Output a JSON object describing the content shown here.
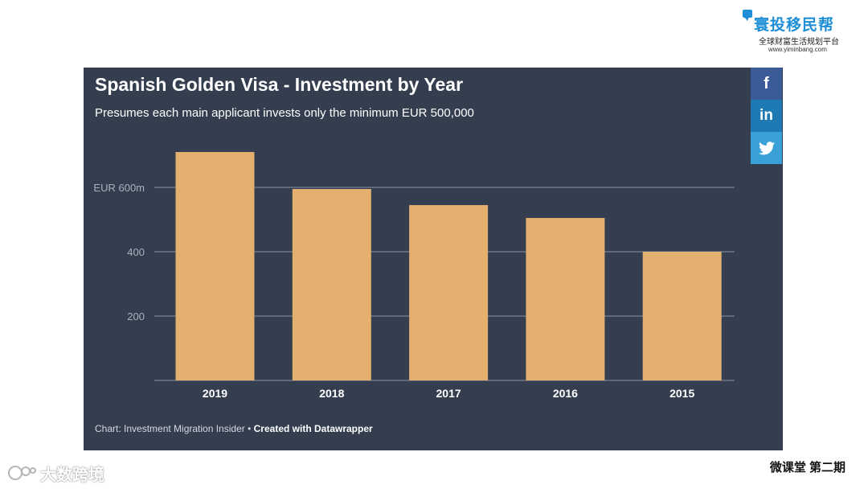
{
  "logo": {
    "brand": "寰投移民帮",
    "tagline": "全球财富生活规划平台",
    "url": "www.yiminbang.com"
  },
  "chart": {
    "title": "Spanish Golden Visa - Investment by Year",
    "subtitle": "Presumes each main applicant invests only the minimum EUR 500,000",
    "footer_source": "Chart: Investment Migration Insider",
    "footer_separator": "•",
    "footer_credit": "Created with Datawrapper"
  },
  "social": {
    "facebook": "f",
    "linkedin": "in",
    "twitter": "twitter"
  },
  "watermark": "大数跨境",
  "series_caption": "微课堂  第二期",
  "colors": {
    "panel_bg": "#343e4f",
    "bar": "#e3b06f",
    "grid": "#8a93a3",
    "axis_text": "#aab1bd",
    "x_text": "#ffffff"
  },
  "chart_data": {
    "type": "bar",
    "title": "Spanish Golden Visa - Investment by Year",
    "subtitle": "Presumes each main applicant invests only the minimum EUR 500,000",
    "categories": [
      "2019",
      "2018",
      "2017",
      "2016",
      "2015"
    ],
    "values": [
      710,
      595,
      545,
      505,
      400
    ],
    "unit": "EUR m",
    "yticks": [
      {
        "value": 200,
        "label": "200"
      },
      {
        "value": 400,
        "label": "400"
      },
      {
        "value": 600,
        "label": "EUR 600m"
      }
    ],
    "ylim": [
      0,
      750
    ],
    "grid": true,
    "legend": "none"
  }
}
